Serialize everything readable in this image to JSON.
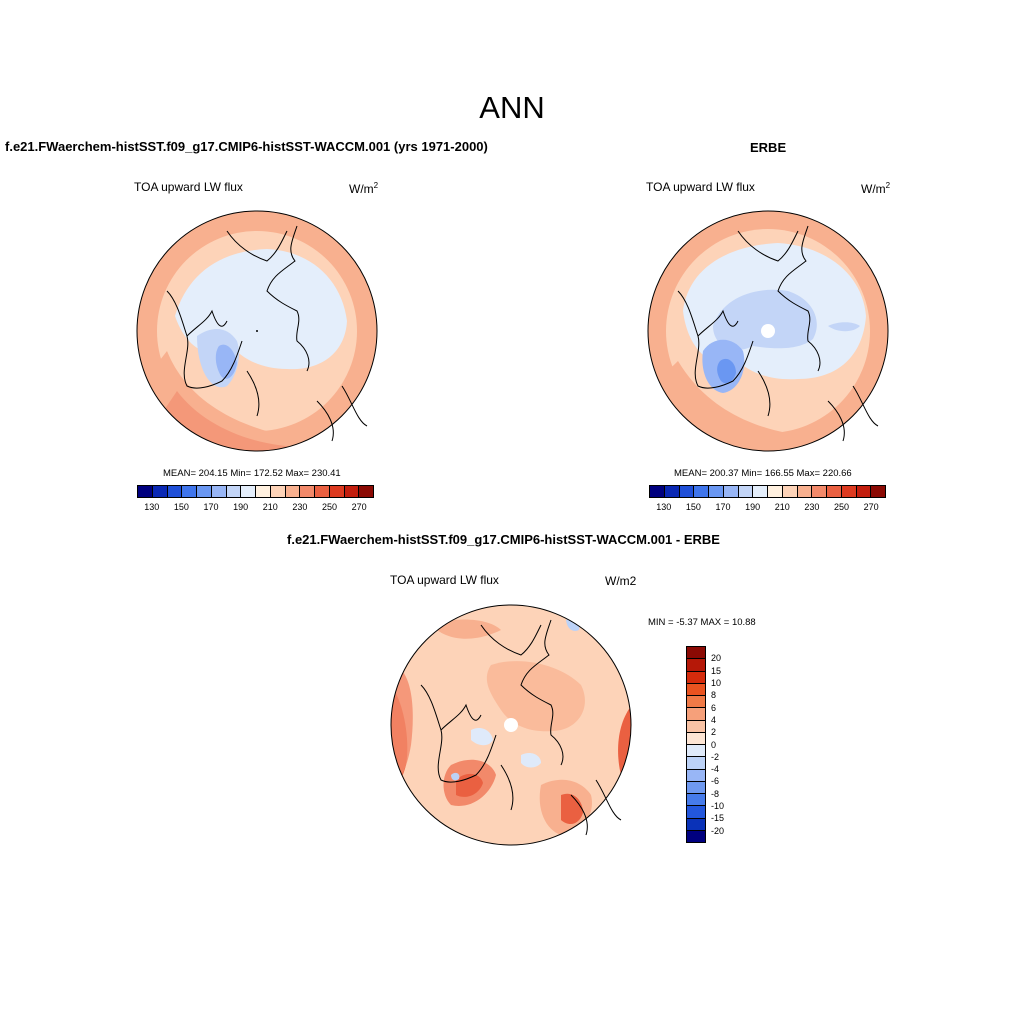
{
  "page_title": "ANN",
  "panels": {
    "model": {
      "title": "f.e21.FWaerchem-histSST.f09_g17.CMIP6-histSST-WACCM.001 (yrs 1971-2000)",
      "variable": "TOA upward LW flux",
      "units_base": "W/m",
      "units_exp": "2",
      "stats": "MEAN= 204.15  Min= 172.52  Max= 230.41"
    },
    "obs": {
      "title": "ERBE",
      "variable": "TOA upward LW flux",
      "units_base": "W/m",
      "units_exp": "2",
      "stats": "MEAN= 200.37  Min= 166.55  Max= 220.66"
    },
    "diff": {
      "title": "f.e21.FWaerchem-histSST.f09_g17.CMIP6-histSST-WACCM.001 - ERBE",
      "variable": "TOA upward LW flux",
      "units": "W/m2",
      "stats": "MIN =  -5.37 MAX =  10.88"
    }
  },
  "colorbar_main": {
    "colors": [
      "#00007f",
      "#0a28b4",
      "#1f4fd8",
      "#3f75ec",
      "#6a97f2",
      "#98b6f6",
      "#c3d5f7",
      "#e4eefb",
      "#fff0df",
      "#fdd3b8",
      "#f8b08f",
      "#f2896a",
      "#ea6041",
      "#dd3a20",
      "#c31e0e",
      "#8b0a04"
    ],
    "tick_labels": [
      "130",
      "150",
      "170",
      "190",
      "210",
      "230",
      "250",
      "270"
    ]
  },
  "colorbar_diff": {
    "colors_top_to_bottom": [
      "#8b0a04",
      "#b51808",
      "#d52b0c",
      "#ea5320",
      "#f07a47",
      "#f6a07a",
      "#f9c3a5",
      "#fde5d4",
      "#dfeafa",
      "#bcd2f7",
      "#98b6f6",
      "#6f99f0",
      "#467bea",
      "#2357dc",
      "#0a32b8",
      "#00007f"
    ],
    "tick_labels": [
      "20",
      "15",
      "10",
      "8",
      "6",
      "4",
      "2",
      "0",
      "-2",
      "-4",
      "-6",
      "-8",
      "-10",
      "-15",
      "-20"
    ]
  }
}
